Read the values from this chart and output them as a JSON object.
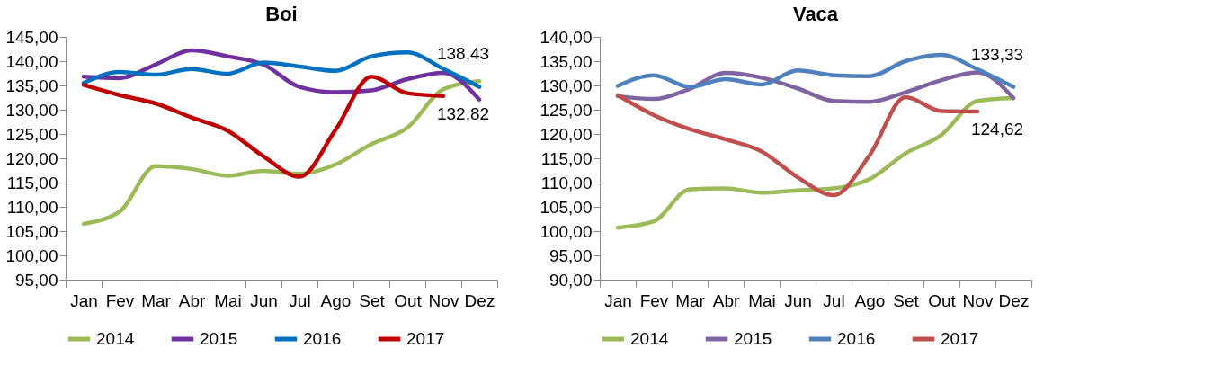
{
  "chart_data": [
    {
      "type": "line",
      "title": "Boi",
      "categories": [
        "Jan",
        "Fev",
        "Mar",
        "Abr",
        "Mai",
        "Jun",
        "Jul",
        "Ago",
        "Set",
        "Out",
        "Nov",
        "Dez"
      ],
      "ylim": [
        95,
        145
      ],
      "yticks": [
        {
          "value": 95,
          "label": "95,00"
        },
        {
          "value": 100,
          "label": "100,00"
        },
        {
          "value": 105,
          "label": "105,00"
        },
        {
          "value": 110,
          "label": "110,00"
        },
        {
          "value": 115,
          "label": "115,00"
        },
        {
          "value": 120,
          "label": "120,00"
        },
        {
          "value": 125,
          "label": "125,00"
        },
        {
          "value": 130,
          "label": "130,00"
        },
        {
          "value": 135,
          "label": "135,00"
        },
        {
          "value": 140,
          "label": "140,00"
        },
        {
          "value": 145,
          "label": "145,00"
        }
      ],
      "grid": false,
      "legend": "bottom",
      "marker": "none",
      "line_style": "solid",
      "series": [
        {
          "name": "2014",
          "color": "#9bbb59",
          "values": [
            106.5,
            109,
            118.4,
            117.8,
            116.4,
            117.4,
            116.8,
            118.7,
            122.9,
            126.3,
            134.2,
            135.9
          ]
        },
        {
          "name": "2015",
          "color": "#7030a0",
          "values": [
            136.8,
            136.5,
            139.3,
            142.2,
            141,
            139.3,
            134.7,
            133.6,
            134,
            136.3,
            137.6,
            132.1
          ]
        },
        {
          "name": "2016",
          "color": "#0070c0",
          "values": [
            135.5,
            137.8,
            137.2,
            138.4,
            137.4,
            139.7,
            138.9,
            138,
            141,
            141.8,
            138.43,
            134.7
          ],
          "value_labels": [
            null,
            null,
            null,
            null,
            null,
            null,
            null,
            null,
            null,
            null,
            "138,43",
            null
          ]
        },
        {
          "name": "2017",
          "color": "#c00000",
          "values": [
            135.1,
            133,
            131.3,
            128.4,
            125.7,
            120.4,
            116.2,
            125.8,
            136.8,
            133.4,
            132.82,
            null
          ],
          "value_labels": [
            null,
            null,
            null,
            null,
            null,
            null,
            null,
            null,
            null,
            null,
            "132,82",
            null
          ]
        }
      ]
    },
    {
      "type": "line",
      "title": "Vaca",
      "categories": [
        "Jan",
        "Fev",
        "Mar",
        "Abr",
        "Mai",
        "Jun",
        "Jul",
        "Ago",
        "Set",
        "Out",
        "Nov",
        "Dez"
      ],
      "ylim": [
        90,
        140
      ],
      "yticks": [
        {
          "value": 90,
          "label": "90,00"
        },
        {
          "value": 95,
          "label": "95,00"
        },
        {
          "value": 100,
          "label": "100,00"
        },
        {
          "value": 105,
          "label": "105,00"
        },
        {
          "value": 110,
          "label": "110,00"
        },
        {
          "value": 115,
          "label": "115,00"
        },
        {
          "value": 120,
          "label": "120,00"
        },
        {
          "value": 125,
          "label": "125,00"
        },
        {
          "value": 130,
          "label": "130,00"
        },
        {
          "value": 135,
          "label": "135,00"
        },
        {
          "value": 140,
          "label": "140,00"
        }
      ],
      "grid": false,
      "legend": "bottom",
      "marker": "none",
      "line_style": "solid",
      "series": [
        {
          "name": "2014",
          "color": "#9bbb59",
          "values": [
            100.7,
            102,
            108.6,
            108.8,
            107.9,
            108.4,
            108.8,
            110.7,
            116,
            119.8,
            126.8,
            127.4
          ]
        },
        {
          "name": "2015",
          "color": "#8064a2",
          "values": [
            127.8,
            127.2,
            129.3,
            132.6,
            131.6,
            129.4,
            126.8,
            126.6,
            128.6,
            131.1,
            132.7,
            127.4
          ]
        },
        {
          "name": "2016",
          "color": "#4f81bd",
          "values": [
            129.9,
            132.1,
            129.7,
            131.3,
            130.2,
            133.1,
            132.1,
            131.9,
            135,
            136.3,
            133.33,
            129.7
          ],
          "value_labels": [
            null,
            null,
            null,
            null,
            null,
            null,
            null,
            null,
            null,
            null,
            "133,33",
            null
          ]
        },
        {
          "name": "2017",
          "color": "#c0504d",
          "values": [
            128,
            123.9,
            121,
            118.9,
            116.4,
            111.1,
            107.4,
            115.6,
            127.6,
            124.7,
            124.62,
            null
          ],
          "value_labels": [
            null,
            null,
            null,
            null,
            null,
            null,
            null,
            null,
            null,
            null,
            "124,62",
            null
          ]
        }
      ]
    }
  ]
}
